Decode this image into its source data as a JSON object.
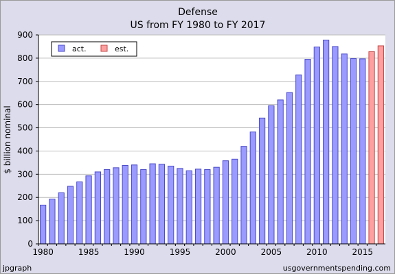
{
  "footer": {
    "left": "jpgraph",
    "right": "usgovernmentspending.com"
  },
  "colors": {
    "actual": "#9a9aff",
    "estimate": "#ffa0a0",
    "actual_edge": "#4a4ac8",
    "estimate_edge": "#c04a4a",
    "background": "#dcdcec",
    "plot": "#ffffff"
  },
  "chart_data": {
    "type": "bar",
    "title": "Defense",
    "subtitle": "US from FY 1980 to FY 2017",
    "xlabel": "",
    "ylabel": "$ billion nominal",
    "ylim": [
      0,
      900
    ],
    "yticks": [
      "0",
      "100",
      "200",
      "300",
      "400",
      "500",
      "600",
      "700",
      "800",
      "900"
    ],
    "xticks": [
      "1980",
      "1985",
      "1990",
      "1995",
      "2000",
      "2005",
      "2010",
      "2015"
    ],
    "grid": true,
    "legend_position": "top-left",
    "categories": [
      1980,
      1981,
      1982,
      1983,
      1984,
      1985,
      1986,
      1987,
      1988,
      1989,
      1990,
      1991,
      1992,
      1993,
      1994,
      1995,
      1996,
      1997,
      1998,
      1999,
      2000,
      2001,
      2002,
      2003,
      2004,
      2005,
      2006,
      2007,
      2008,
      2009,
      2010,
      2011,
      2012,
      2013,
      2014,
      2015,
      2016,
      2017
    ],
    "series": [
      {
        "name": "act.",
        "values": [
          167,
          193,
          220,
          248,
          267,
          293,
          310,
          320,
          328,
          338,
          340,
          320,
          345,
          343,
          335,
          325,
          315,
          322,
          320,
          330,
          358,
          365,
          420,
          482,
          542,
          595,
          620,
          652,
          728,
          795,
          848,
          878,
          850,
          818,
          798,
          797,
          null,
          null
        ]
      },
      {
        "name": "est.",
        "values": [
          null,
          null,
          null,
          null,
          null,
          null,
          null,
          null,
          null,
          null,
          null,
          null,
          null,
          null,
          null,
          null,
          null,
          null,
          null,
          null,
          null,
          null,
          null,
          null,
          null,
          null,
          null,
          null,
          null,
          null,
          null,
          null,
          null,
          null,
          null,
          null,
          828,
          853
        ]
      }
    ]
  }
}
